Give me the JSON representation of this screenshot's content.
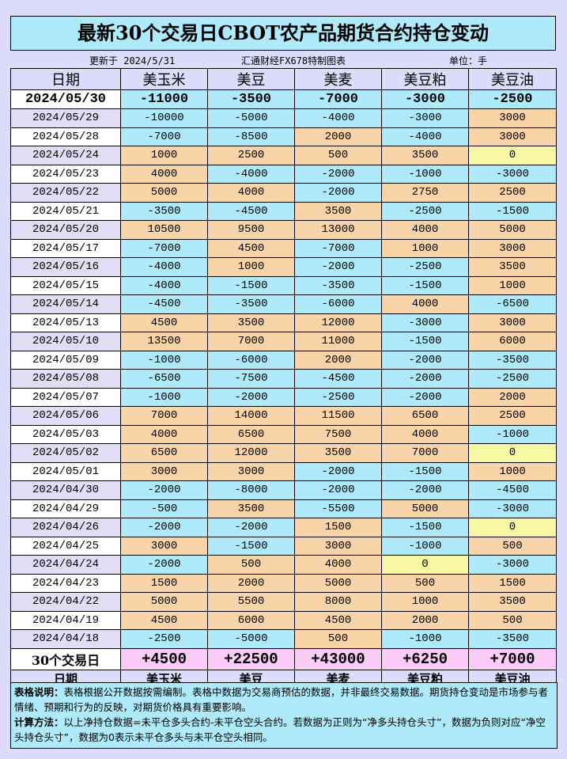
{
  "title": "最新30个交易日CBOT农产品期货合约持仓变动",
  "subheader": {
    "updated": "更新于 2024/5/31",
    "source": "汇通财经FX678特制图表",
    "unit": "单位：手"
  },
  "columns": [
    "日期",
    "美玉米",
    "美豆",
    "美麦",
    "美豆粕",
    "美豆油"
  ],
  "colors": {
    "negative": "#aeeafa",
    "positive": "#f9d4a8",
    "zero": "#f8f8a4",
    "total": "#fcccf8"
  },
  "latest": {
    "date": "2024/05/30",
    "values": [
      "-11000",
      "-3500",
      "-7000",
      "-3000",
      "-2500"
    ]
  },
  "rows": [
    {
      "date": "2024/05/29",
      "values": [
        "-10000",
        "-5000",
        "-4000",
        "-3000",
        "3000"
      ]
    },
    {
      "date": "2024/05/28",
      "values": [
        "-7000",
        "-8500",
        "2000",
        "-4000",
        "3000"
      ]
    },
    {
      "date": "2024/05/24",
      "values": [
        "1000",
        "2500",
        "500",
        "3500",
        "0"
      ]
    },
    {
      "date": "2024/05/23",
      "values": [
        "4000",
        "-4000",
        "-2000",
        "-1000",
        "-3000"
      ]
    },
    {
      "date": "2024/05/22",
      "values": [
        "5000",
        "4000",
        "-2000",
        "2750",
        "2500"
      ]
    },
    {
      "date": "2024/05/21",
      "values": [
        "-3500",
        "-4500",
        "3500",
        "-2500",
        "-1500"
      ]
    },
    {
      "date": "2024/05/20",
      "values": [
        "10500",
        "9500",
        "13000",
        "4000",
        "5000"
      ]
    },
    {
      "date": "2024/05/17",
      "values": [
        "-7000",
        "4500",
        "-7000",
        "1000",
        "3000"
      ]
    },
    {
      "date": "2024/05/16",
      "values": [
        "-4000",
        "1000",
        "-2000",
        "-2500",
        "3500"
      ]
    },
    {
      "date": "2024/05/15",
      "values": [
        "-4000",
        "-1500",
        "-3500",
        "-1500",
        "1000"
      ]
    },
    {
      "date": "2024/05/14",
      "values": [
        "-4500",
        "-3500",
        "-6000",
        "4000",
        "-6500"
      ]
    },
    {
      "date": "2024/05/13",
      "values": [
        "4500",
        "3500",
        "12000",
        "-3000",
        "3000"
      ]
    },
    {
      "date": "2024/05/10",
      "values": [
        "13500",
        "7000",
        "11000",
        "-1500",
        "6000"
      ]
    },
    {
      "date": "2024/05/09",
      "values": [
        "-1000",
        "-6000",
        "2000",
        "-2000",
        "-3500"
      ]
    },
    {
      "date": "2024/05/08",
      "values": [
        "-6500",
        "-7500",
        "-4500",
        "-2000",
        "-2500"
      ]
    },
    {
      "date": "2024/05/07",
      "values": [
        "-1000",
        "-2000",
        "-2500",
        "-2000",
        "2000"
      ]
    },
    {
      "date": "2024/05/06",
      "values": [
        "7000",
        "14000",
        "11500",
        "6500",
        "2500"
      ]
    },
    {
      "date": "2024/05/03",
      "values": [
        "4000",
        "6500",
        "7500",
        "4000",
        "-1000"
      ]
    },
    {
      "date": "2024/05/02",
      "values": [
        "6500",
        "12000",
        "3500",
        "7000",
        "0"
      ]
    },
    {
      "date": "2024/05/01",
      "values": [
        "3000",
        "3000",
        "-2000",
        "-1500",
        "1000"
      ]
    },
    {
      "date": "2024/04/30",
      "values": [
        "-2000",
        "-8000",
        "-2000",
        "-2000",
        "-4500"
      ]
    },
    {
      "date": "2024/04/29",
      "values": [
        "-500",
        "3500",
        "-5500",
        "5000",
        "-3000"
      ]
    },
    {
      "date": "2024/04/26",
      "values": [
        "-2000",
        "-2000",
        "1500",
        "-1500",
        "0"
      ]
    },
    {
      "date": "2024/04/25",
      "values": [
        "3000",
        "-1500",
        "3000",
        "-1000",
        "500"
      ]
    },
    {
      "date": "2024/04/24",
      "values": [
        "-2000",
        "500",
        "4000",
        "0",
        "-3000"
      ]
    },
    {
      "date": "2024/04/23",
      "values": [
        "1500",
        "2000",
        "5000",
        "500",
        "1500"
      ]
    },
    {
      "date": "2024/04/22",
      "values": [
        "5000",
        "5500",
        "8000",
        "1000",
        "3500"
      ]
    },
    {
      "date": "2024/04/19",
      "values": [
        "4500",
        "6000",
        "4500",
        "2000",
        "500"
      ]
    },
    {
      "date": "2024/04/18",
      "values": [
        "-2500",
        "-5000",
        "500",
        "-1000",
        "-3500"
      ]
    }
  ],
  "total": {
    "label": "30个交易日",
    "values": [
      "+4500",
      "+22500",
      "+43000",
      "+6250",
      "+7000"
    ]
  },
  "notes": {
    "desc_label": "表格说明：",
    "desc": "表格根据公开数据按需编制。表格中数据为交易商预估的数据，并非最终交易数据。期货持仓变动是市场参与者情绪、预期和行为的反映，对期货价格具有重要影响。",
    "calc_label": "计算方法：",
    "calc": "以上净持仓数据=未平仓多头合约-未平仓空头合约。若数据为正则为“净多头持仓头寸”，数据为负则对应“净空头持仓头寸”，数据为0表示未平仓多头与未平仓空头相同。"
  }
}
